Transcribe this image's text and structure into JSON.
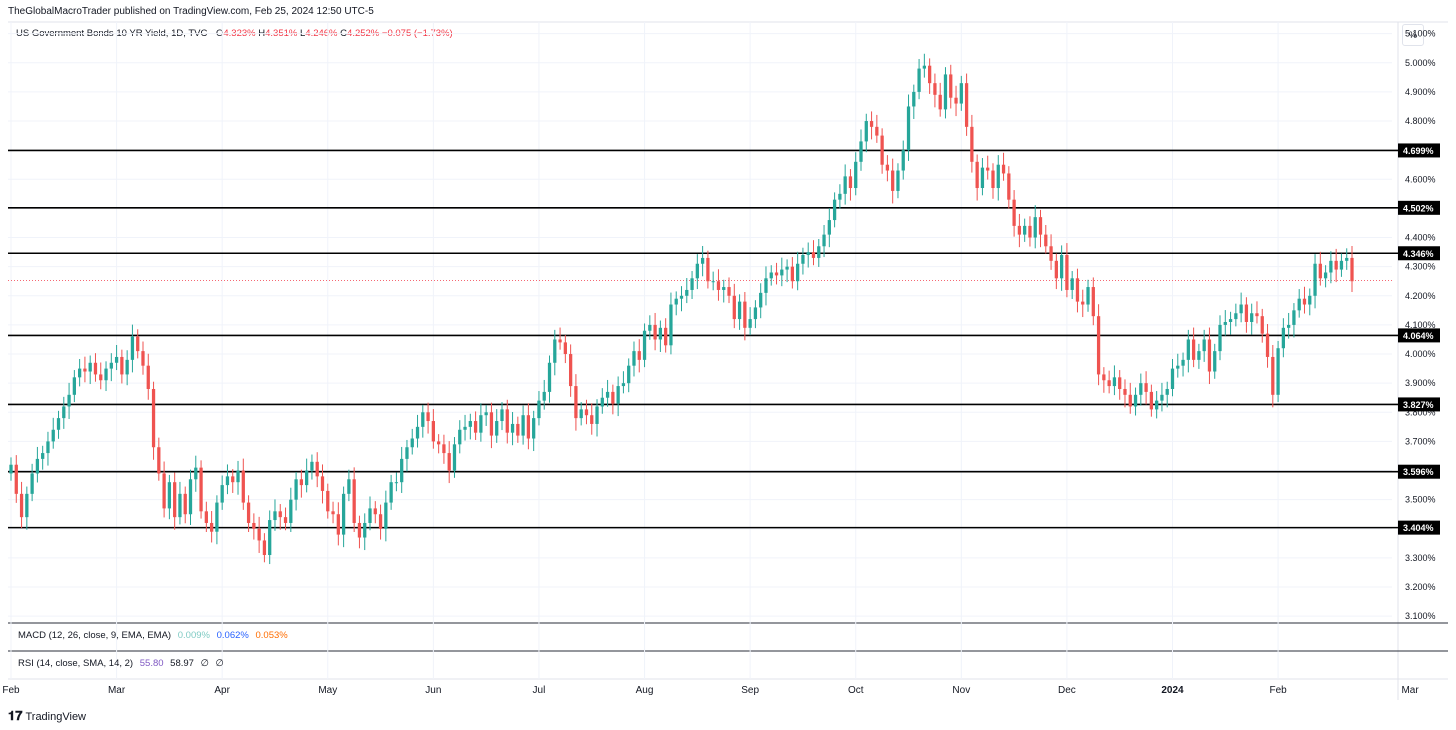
{
  "header": {
    "published": "TheGlobalMacroTrader published on TradingView.com, Feb 25, 2024 12:50 UTC-5"
  },
  "legend": {
    "symbol": "US Government Bonds 10 YR Yield, 1D, TVC",
    "open_label": "O",
    "open": "4.323%",
    "high_label": "H",
    "high": "4.351%",
    "low_label": "L",
    "low": "4.246%",
    "close_label": "C",
    "close": "4.252%",
    "change": "−0.075 (−1.73%)"
  },
  "scale_button": "%",
  "macd": {
    "label": "MACD (12, 26, close, 9, EMA, EMA)",
    "v1": "0.009%",
    "v2": "0.062%",
    "v3": "0.053%",
    "colors": {
      "v1": "#80cbc4",
      "v2": "#2962ff",
      "v3": "#ff6d00"
    }
  },
  "rsi": {
    "label": "RSI (14, close, SMA, 14, 2)",
    "v1": "55.80",
    "v2": "58.97",
    "v3": "∅",
    "v4": "∅",
    "colors": {
      "v1": "#7e57c2"
    }
  },
  "footer": {
    "logo_glyph": "𝟏𝟕",
    "brand": "TradingView"
  },
  "colors": {
    "up": "#26a69a",
    "down": "#ef5350",
    "line": "#000000",
    "grid": "#f0f3fa",
    "last_price": "#f23645"
  },
  "chart_data": {
    "type": "candlestick",
    "title": "US Government Bonds 10 YR Yield, 1D, TVC",
    "y_unit": "%",
    "ylim": [
      3.08,
      5.14
    ],
    "y_ticks": [
      "5.100%",
      "5.000%",
      "4.900%",
      "4.800%",
      "4.700%",
      "4.600%",
      "4.500%",
      "4.400%",
      "4.300%",
      "4.200%",
      "4.100%",
      "4.000%",
      "3.900%",
      "3.800%",
      "3.700%",
      "3.600%",
      "3.500%",
      "3.400%",
      "3.300%",
      "3.200%",
      "3.100%"
    ],
    "x_ticks": [
      "Feb",
      "Mar",
      "Apr",
      "May",
      "Jun",
      "Jul",
      "Aug",
      "Sep",
      "Oct",
      "Nov",
      "Dec",
      "2024",
      "Feb",
      "Mar"
    ],
    "horizontal_levels": [
      {
        "value": 4.699,
        "label": "4.699%"
      },
      {
        "value": 4.502,
        "label": "4.502%"
      },
      {
        "value": 4.346,
        "label": "4.346%"
      },
      {
        "value": 4.064,
        "label": "4.064%"
      },
      {
        "value": 3.827,
        "label": "3.827%"
      },
      {
        "value": 3.596,
        "label": "3.596%"
      },
      {
        "value": 3.404,
        "label": "3.404%"
      }
    ],
    "last_price": 4.252,
    "series": [
      {
        "month": "Feb",
        "values": [
          3.62,
          3.52,
          3.44,
          3.52,
          3.59,
          3.64,
          3.66,
          3.7,
          3.74,
          3.78,
          3.82,
          3.86,
          3.92,
          3.95,
          3.94,
          3.97,
          3.93,
          3.91,
          3.95,
          3.97
        ]
      },
      {
        "month": "Mar",
        "values": [
          3.99,
          3.93,
          3.98,
          4.06,
          4.01,
          3.96,
          3.88,
          3.68,
          3.59,
          3.47,
          3.56,
          3.44,
          3.52,
          3.45,
          3.57,
          3.61,
          3.46,
          3.42,
          3.39,
          3.49
        ]
      },
      {
        "month": "Apr",
        "values": [
          3.55,
          3.58,
          3.56,
          3.6,
          3.49,
          3.42,
          3.4,
          3.36,
          3.31,
          3.43,
          3.46,
          3.44,
          3.42,
          3.5,
          3.57,
          3.55,
          3.6,
          3.63,
          3.58,
          3.53
        ]
      },
      {
        "month": "May",
        "values": [
          3.46,
          3.45,
          3.38,
          3.52,
          3.57,
          3.42,
          3.37,
          3.42,
          3.47,
          3.45,
          3.4,
          3.49,
          3.56,
          3.56,
          3.64,
          3.68,
          3.71,
          3.75,
          3.8,
          3.77
        ]
      },
      {
        "month": "Jun",
        "values": [
          3.7,
          3.69,
          3.66,
          3.6,
          3.69,
          3.74,
          3.75,
          3.77,
          3.73,
          3.79,
          3.8,
          3.72,
          3.77,
          3.81,
          3.73,
          3.76,
          3.72,
          3.79,
          3.71,
          3.78
        ]
      },
      {
        "month": "Jul",
        "values": [
          3.84,
          3.87,
          3.97,
          4.05,
          4.04,
          4.0,
          3.89,
          3.78,
          3.81,
          3.79,
          3.76,
          3.82,
          3.85,
          3.87,
          3.83,
          3.89,
          3.9,
          3.96,
          4.01,
          3.98
        ]
      },
      {
        "month": "Aug",
        "values": [
          4.08,
          4.1,
          4.05,
          4.09,
          4.03,
          4.17,
          4.19,
          4.2,
          4.22,
          4.26,
          4.31,
          4.33,
          4.25,
          4.25,
          4.22,
          4.23,
          4.2,
          4.12,
          4.18,
          4.09
        ]
      },
      {
        "month": "Sep",
        "values": [
          4.12,
          4.16,
          4.21,
          4.26,
          4.28,
          4.27,
          4.29,
          4.3,
          4.25,
          4.31,
          4.34,
          4.35,
          4.33,
          4.37,
          4.41,
          4.46,
          4.53,
          4.55,
          4.61,
          4.57
        ]
      },
      {
        "month": "Oct",
        "values": [
          4.66,
          4.73,
          4.8,
          4.78,
          4.75,
          4.65,
          4.63,
          4.56,
          4.63,
          4.7,
          4.85,
          4.9,
          4.98,
          4.99,
          4.93,
          4.89,
          4.84,
          4.96,
          4.88,
          4.86
        ]
      },
      {
        "month": "Nov",
        "values": [
          4.93,
          4.78,
          4.66,
          4.57,
          4.64,
          4.63,
          4.57,
          4.65,
          4.62,
          4.53,
          4.44,
          4.41,
          4.44,
          4.4,
          4.47,
          4.41,
          4.37,
          4.32,
          4.26,
          4.34
        ]
      },
      {
        "month": "Dec",
        "values": [
          4.22,
          4.26,
          4.18,
          4.17,
          4.23,
          4.13,
          3.93,
          3.91,
          3.89,
          3.92,
          3.88,
          3.86,
          3.82,
          3.86,
          3.9,
          3.87,
          3.81,
          3.84,
          3.86,
          3.88
        ]
      },
      {
        "month": "2024",
        "values": [
          3.95,
          3.96,
          3.98,
          4.05,
          3.98,
          4.01,
          4.05,
          3.94,
          4.01,
          4.1,
          4.11,
          4.12,
          4.14,
          4.17,
          4.11,
          4.14,
          4.13,
          4.07,
          3.99,
          3.86
        ]
      },
      {
        "month": "Feb",
        "values": [
          4.02,
          4.09,
          4.1,
          4.15,
          4.19,
          4.17,
          4.2,
          4.31,
          4.26,
          4.28,
          4.32,
          4.29,
          4.32,
          4.33,
          4.25
        ]
      }
    ]
  }
}
